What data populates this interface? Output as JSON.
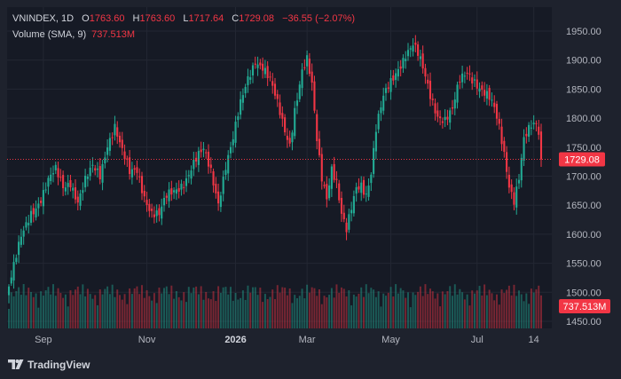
{
  "header": {
    "symbol": "VNINDEX",
    "interval": "1D",
    "open_label": "O",
    "open_value": "1763.60",
    "high_label": "H",
    "high_value": "1763.60",
    "low_label": "L",
    "low_value": "1717.64",
    "close_label": "C",
    "close_value": "1729.08",
    "change": "−36.55 (−2.07%)",
    "volume_label": "Volume (SMA, 9)",
    "volume_value": "737.513M"
  },
  "price_badge": "1729.08",
  "volume_badge": "737.513M",
  "footer": {
    "brand": "TradingView"
  },
  "colors": {
    "up": "#22ab94",
    "down": "#f23645",
    "background": "#161a25",
    "frame": "#1e222d"
  },
  "chart_data": {
    "type": "candlestick",
    "y_ticks": [
      "1950.00",
      "1900.00",
      "1850.00",
      "1800.00",
      "1750.00",
      "1700.00",
      "1650.00",
      "1600.00",
      "1550.00",
      "1500.00",
      "1450.00"
    ],
    "y_range": [
      1430,
      1960
    ],
    "x_ticks": [
      {
        "label": "Sep",
        "index": 14,
        "bold": false
      },
      {
        "label": "Nov",
        "index": 56,
        "bold": false
      },
      {
        "label": "2026",
        "index": 92,
        "bold": true
      },
      {
        "label": "Mar",
        "index": 121,
        "bold": false
      },
      {
        "label": "May",
        "index": 155,
        "bold": false
      },
      {
        "label": "Jul",
        "index": 190,
        "bold": false
      },
      {
        "label": "14",
        "index": 213,
        "bold": false
      }
    ],
    "last_close": 1729.08,
    "anchors": [
      [
        0,
        1510
      ],
      [
        2,
        1540
      ],
      [
        5,
        1590
      ],
      [
        9,
        1640
      ],
      [
        13,
        1665
      ],
      [
        16,
        1690
      ],
      [
        19,
        1705
      ],
      [
        22,
        1680
      ],
      [
        25,
        1695
      ],
      [
        28,
        1660
      ],
      [
        31,
        1690
      ],
      [
        34,
        1710
      ],
      [
        37,
        1700
      ],
      [
        40,
        1760
      ],
      [
        43,
        1790
      ],
      [
        46,
        1740
      ],
      [
        49,
        1700
      ],
      [
        52,
        1710
      ],
      [
        55,
        1670
      ],
      [
        58,
        1640
      ],
      [
        61,
        1630
      ],
      [
        64,
        1660
      ],
      [
        68,
        1680
      ],
      [
        72,
        1700
      ],
      [
        75,
        1720
      ],
      [
        79,
        1740
      ],
      [
        82,
        1710
      ],
      [
        85,
        1660
      ],
      [
        88,
        1720
      ],
      [
        91,
        1760
      ],
      [
        94,
        1820
      ],
      [
        97,
        1870
      ],
      [
        100,
        1905
      ],
      [
        103,
        1890
      ],
      [
        106,
        1860
      ],
      [
        109,
        1820
      ],
      [
        112,
        1780
      ],
      [
        114,
        1760
      ],
      [
        116,
        1820
      ],
      [
        119,
        1880
      ],
      [
        121,
        1895
      ],
      [
        123,
        1850
      ],
      [
        125,
        1760
      ],
      [
        127,
        1700
      ],
      [
        129,
        1670
      ],
      [
        131,
        1720
      ],
      [
        133,
        1690
      ],
      [
        135,
        1630
      ],
      [
        137,
        1600
      ],
      [
        139,
        1640
      ],
      [
        141,
        1680
      ],
      [
        143,
        1690
      ],
      [
        145,
        1675
      ],
      [
        147,
        1710
      ],
      [
        149,
        1780
      ],
      [
        152,
        1830
      ],
      [
        155,
        1860
      ],
      [
        158,
        1890
      ],
      [
        161,
        1915
      ],
      [
        164,
        1925
      ],
      [
        166,
        1905
      ],
      [
        168,
        1880
      ],
      [
        171,
        1840
      ],
      [
        174,
        1810
      ],
      [
        177,
        1800
      ],
      [
        180,
        1810
      ],
      [
        183,
        1860
      ],
      [
        186,
        1880
      ],
      [
        189,
        1870
      ],
      [
        192,
        1850
      ],
      [
        195,
        1830
      ],
      [
        197,
        1810
      ],
      [
        199,
        1780
      ],
      [
        201,
        1740
      ],
      [
        203,
        1690
      ],
      [
        205,
        1665
      ],
      [
        207,
        1700
      ],
      [
        209,
        1760
      ],
      [
        212,
        1780
      ],
      [
        214,
        1785
      ],
      [
        216,
        1764
      ]
    ],
    "volume_avg_m": 737.513,
    "volume_axis_note": "volume bars share the lower region of the price pane"
  }
}
